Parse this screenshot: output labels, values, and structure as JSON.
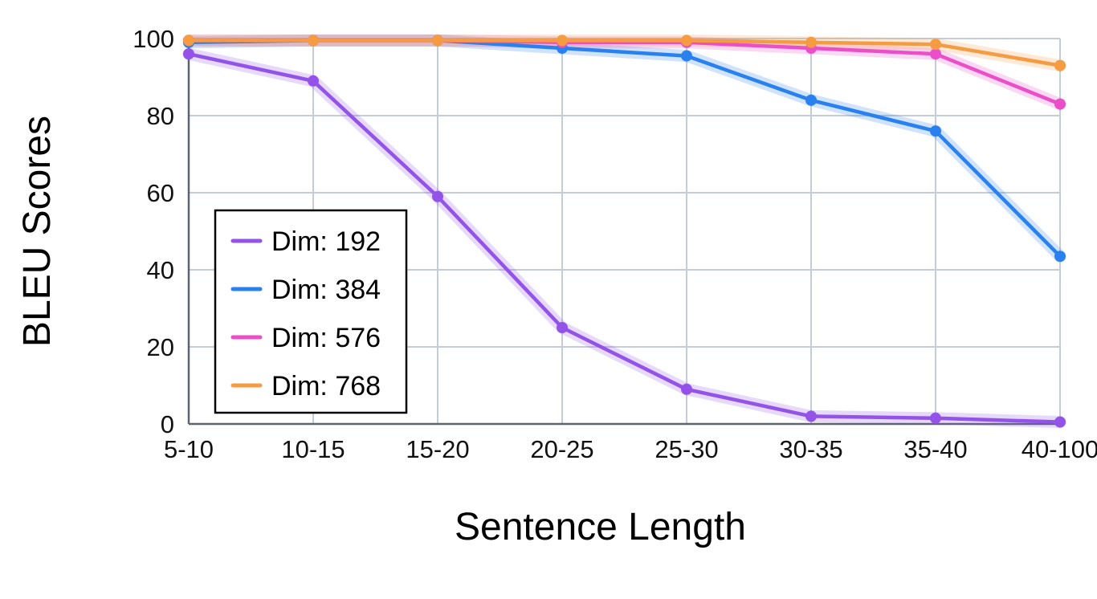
{
  "chart_data": {
    "type": "line",
    "title": "",
    "xlabel": "Sentence Length",
    "ylabel": "BLEU Scores",
    "categories": [
      "5-10",
      "10-15",
      "15-20",
      "20-25",
      "25-30",
      "30-35",
      "35-40",
      "40-100"
    ],
    "series": [
      {
        "name": "Dim: 192",
        "color": "#9353e8",
        "values": [
          96,
          89,
          59,
          25,
          9,
          2,
          1.5,
          0.5
        ]
      },
      {
        "name": "Dim: 384",
        "color": "#2980ef",
        "values": [
          99,
          99.5,
          99.5,
          97.5,
          95.5,
          84,
          76,
          43.5
        ]
      },
      {
        "name": "Dim: 576",
        "color": "#ea4fc9",
        "values": [
          99.5,
          99.5,
          99.5,
          99,
          99,
          97.5,
          96,
          83
        ]
      },
      {
        "name": "Dim: 768",
        "color": "#f59b42",
        "values": [
          99.5,
          99.5,
          99.5,
          99.5,
          99.5,
          99,
          98.5,
          93
        ]
      }
    ],
    "yticks": [
      0,
      20,
      40,
      60,
      80,
      100
    ],
    "ylim": [
      0,
      100
    ],
    "grid": true,
    "legend_position": "center-left",
    "band_opacity": 0.22,
    "colors": {
      "grid": "#c3ccd9",
      "spine": "#5a6472",
      "background": "#ffffff",
      "legend_border": "#000000",
      "text": "#000000"
    }
  }
}
